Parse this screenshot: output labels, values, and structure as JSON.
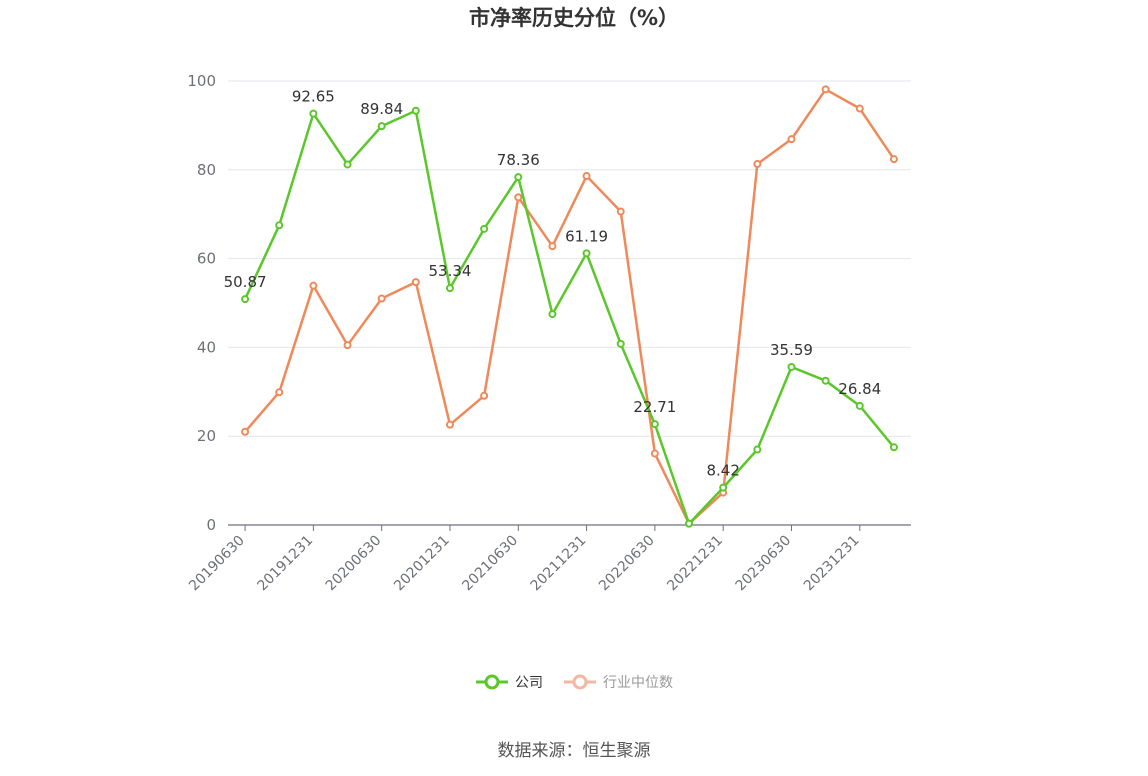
{
  "chart_data": {
    "type": "line",
    "title": "市净率历史分位（%）",
    "categories": [
      "20190630",
      "20190930",
      "20191231",
      "20200331",
      "20200630",
      "20200930",
      "20201231",
      "20210331",
      "20210630",
      "20210930",
      "20211231",
      "20220331",
      "20220630",
      "20220930",
      "20221231",
      "20230331",
      "20230630",
      "20230930",
      "20231231",
      "20240331"
    ],
    "x_tick_labels": [
      "20190630",
      "20191231",
      "20200630",
      "20201231",
      "20210630",
      "20211231",
      "20220630",
      "20221231",
      "20230630",
      "20231231"
    ],
    "y_ticks": [
      "0",
      "20",
      "40",
      "60",
      "80",
      "100"
    ],
    "ylim": [
      0,
      100
    ],
    "grid": true,
    "legend_position": "bottom",
    "series": [
      {
        "name": "公司",
        "color": "#5bc72a",
        "values": [
          50.87,
          67.5,
          92.65,
          81.2,
          89.84,
          93.3,
          53.34,
          66.7,
          78.36,
          47.5,
          61.19,
          40.8,
          22.71,
          0.3,
          8.42,
          17.0,
          35.59,
          32.5,
          26.84,
          17.5
        ],
        "data_labels": [
          {
            "index": 0,
            "text": "50.87"
          },
          {
            "index": 2,
            "text": "92.65"
          },
          {
            "index": 4,
            "text": "89.84"
          },
          {
            "index": 6,
            "text": "53.34"
          },
          {
            "index": 8,
            "text": "78.36"
          },
          {
            "index": 10,
            "text": "61.19"
          },
          {
            "index": 12,
            "text": "22.71"
          },
          {
            "index": 14,
            "text": "8.42"
          },
          {
            "index": 16,
            "text": "35.59"
          },
          {
            "index": 18,
            "text": "26.84"
          }
        ]
      },
      {
        "name": "行业中位数",
        "color": "#f0895a",
        "values": [
          21.0,
          29.9,
          53.9,
          40.5,
          51.0,
          54.7,
          22.6,
          29.1,
          73.8,
          62.8,
          78.6,
          70.6,
          16.1,
          0.3,
          7.3,
          81.3,
          86.9,
          98.1,
          93.8,
          82.4
        ]
      }
    ]
  },
  "legend": {
    "company": "公司",
    "industry": "行业中位数"
  },
  "source_text": "数据来源：恒生聚源",
  "colors": {
    "company": "#5bc72a",
    "industry": "#f0895a",
    "industry_legend": "#f5b7a2",
    "grid": "#e3e6ec",
    "axis": "#6e7079",
    "tick_text": "#6e7079"
  }
}
